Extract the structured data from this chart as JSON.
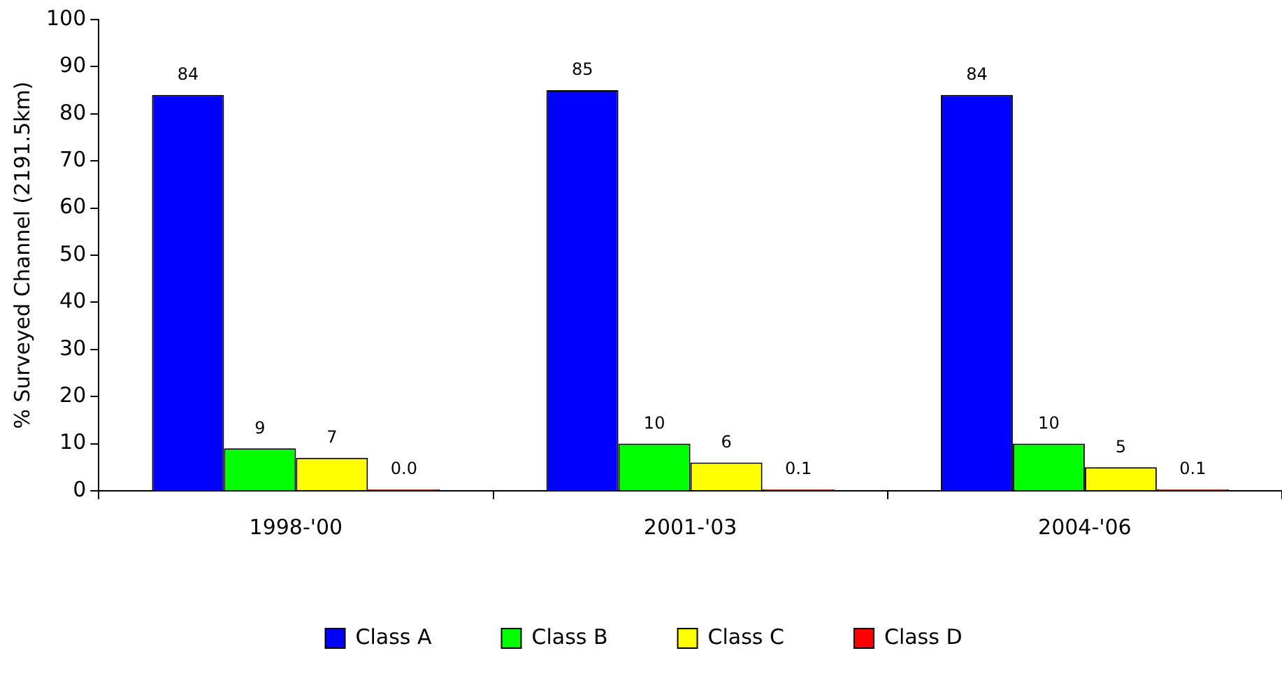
{
  "chart_data": {
    "type": "bar",
    "ylabel": "% Surveyed Channel (2191.5km)",
    "categories": [
      "1998-'00",
      "2001-'03",
      "2004-'06"
    ],
    "series": [
      {
        "name": "Class A",
        "color": "#0000ff",
        "values": [
          84,
          85,
          84
        ],
        "value_labels": [
          "84",
          "85",
          "84"
        ]
      },
      {
        "name": "Class B",
        "color": "#00ff00",
        "values": [
          9,
          10,
          10
        ],
        "value_labels": [
          "9",
          "10",
          "10"
        ]
      },
      {
        "name": "Class C",
        "color": "#ffff00",
        "values": [
          7,
          6,
          5
        ],
        "value_labels": [
          "7",
          "6",
          "5"
        ]
      },
      {
        "name": "Class D",
        "color": "#ff0000",
        "values": [
          0,
          0.1,
          0.1
        ],
        "value_labels": [
          "0.0",
          "0.1",
          "0.1"
        ]
      }
    ],
    "ylim": [
      0,
      100
    ],
    "yticks": [
      0,
      10,
      20,
      30,
      40,
      50,
      60,
      70,
      80,
      90,
      100
    ],
    "grid": false,
    "legend": "bottom"
  }
}
